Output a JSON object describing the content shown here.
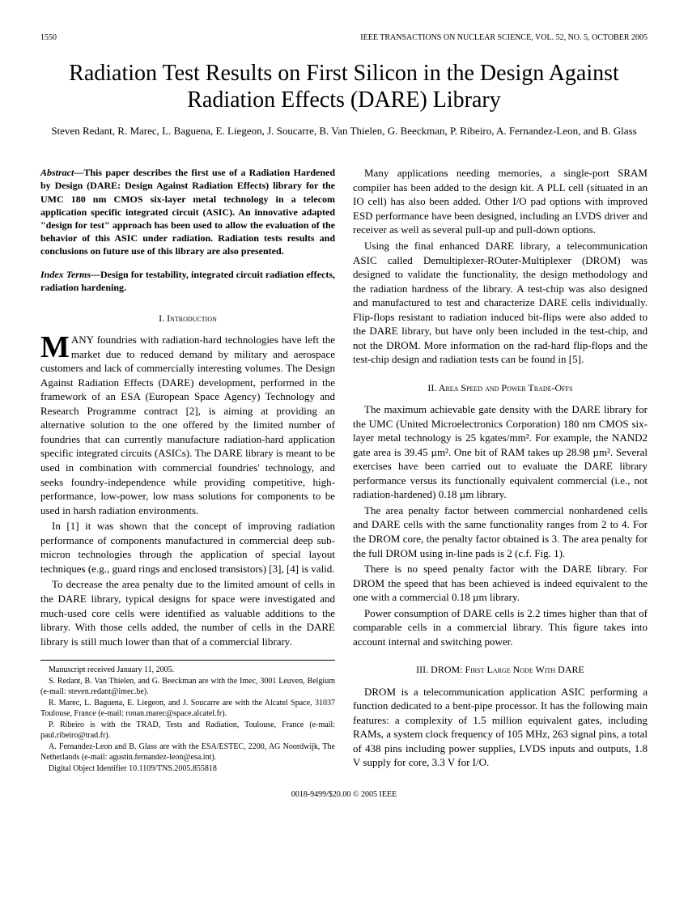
{
  "header": {
    "page": "1550",
    "journal": "IEEE TRANSACTIONS ON NUCLEAR SCIENCE, VOL. 52, NO. 5, OCTOBER 2005"
  },
  "title": "Radiation Test Results on First Silicon in the Design Against Radiation Effects (DARE) Library",
  "authors": "Steven Redant, R. Marec, L. Baguena, E. Liegeon, J. Soucarre, B. Van Thielen, G. Beeckman, P. Ribeiro, A. Fernandez-Leon, and B. Glass",
  "abstract_label": "Abstract—",
  "abstract": "This paper describes the first use of a Radiation Hardened by Design (DARE: Design Against Radiation Effects) library for the UMC 180 nm CMOS six-layer metal technology in a telecom application specific integrated circuit (ASIC). An innovative adapted \"design for test\" approach has been used to allow the evaluation of the behavior of this ASIC under radiation. Radiation tests results and conclusions on future use of this library are also presented.",
  "index_label": "Index Terms—",
  "index_terms": "Design for testability, integrated circuit radiation effects, radiation hardening.",
  "sec1_heading": "I. Introduction",
  "sec1_p1_rest": "ANY foundries with radiation-hard technologies have left the market due to reduced demand by military and aerospace customers and lack of commercially interesting volumes. The Design Against Radiation Effects (DARE) development, performed in the framework of an ESA (European Space Agency) Technology and Research Programme contract [2], is aiming at providing an alternative solution to the one offered by the limited number of foundries that can currently manufacture radiation-hard application specific integrated circuits (ASICs). The DARE library is meant to be used in combination with commercial foundries' technology, and seeks foundry-independence while providing competitive, high-performance, low-power, low mass solutions for components to be used in harsh radiation environments.",
  "sec1_p2": "In [1] it was shown that the concept of improving radiation performance of components manufactured in commercial deep sub-micron technologies through the application of special layout techniques (e.g., guard rings and enclosed transistors) [3], [4] is valid.",
  "sec1_p3": "To decrease the area penalty due to the limited amount of cells in the DARE library, typical designs for space were investigated and much-used core cells were identified as valuable additions to the library. With those cells added, the number of cells in the DARE library is still much lower than that of a commercial library.",
  "footnotes": {
    "f1": "Manuscript received January 11, 2005.",
    "f2": "S. Redant, B. Van Thielen, and G. Beeckman are with the Imec, 3001 Leuven, Belgium (e-mail: steven.redant@imec.be).",
    "f3": "R. Marec, L. Baguena, E. Liegeon, and J. Soucarre are with the Alcatel Space, 31037 Toulouse, France (e-mail: ronan.marec@space.alcatel.fr).",
    "f4": "P. Ribeiro is with the TRAD, Tests and Radiation, Toulouse, France (e-mail: paul.ribeiro@trad.fr).",
    "f5": "A. Fernandez-Leon and B. Glass are with the ESA/ESTEC, 2200, AG Noordwijk, The Netherlands (e-mail: agustin.fernandez-leon@esa.int).",
    "f6": "Digital Object Identifier 10.1109/TNS.2005.855818"
  },
  "col2_p1": "Many applications needing memories, a single-port SRAM compiler has been added to the design kit. A PLL cell (situated in an IO cell) has also been added. Other I/O pad options with improved ESD performance have been designed, including an LVDS driver and receiver as well as several pull-up and pull-down options.",
  "col2_p2": "Using the final enhanced DARE library, a telecommunication ASIC called Demultiplexer-ROuter-Multiplexer (DROM) was designed to validate the functionality, the design methodology and the radiation hardness of the library. A test-chip was also designed and manufactured to test and characterize DARE cells individually. Flip-flops resistant to radiation induced bit-flips were also added to the DARE library, but have only been included in the test-chip, and not the DROM. More information on the rad-hard flip-flops and the test-chip design and radiation tests can be found in [5].",
  "sec2_heading": "II. Area Speed and Power Trade-Offs",
  "sec2_p1": "The maximum achievable gate density with the DARE library for the UMC (United Microelectronics Corporation) 180 nm CMOS six-layer metal technology is 25 kgates/mm². For example, the NAND2 gate area is 39.45 µm². One bit of RAM takes up 28.98 µm². Several exercises have been carried out to evaluate the DARE library performance versus its functionally equivalent commercial (i.e., not radiation-hardened) 0.18 µm library.",
  "sec2_p2": "The area penalty factor between commercial nonhardened cells and DARE cells with the same functionality ranges from 2 to 4. For the DROM core, the penalty factor obtained is 3. The area penalty for the full DROM using in-line pads is 2 (c.f. Fig. 1).",
  "sec2_p3": "There is no speed penalty factor with the DARE library. For DROM the speed that has been achieved is indeed equivalent to the one with a commercial 0.18 µm library.",
  "sec2_p4": "Power consumption of DARE cells is 2.2 times higher than that of comparable cells in a commercial library. This figure takes into account internal and switching power.",
  "sec3_heading": "III. DROM: First Large Node With DARE",
  "sec3_p1": "DROM is a telecommunication application ASIC performing a function dedicated to a bent-pipe processor. It has the following main features: a complexity of 1.5 million equivalent gates, including RAMs, a system clock frequency of 105 MHz, 263 signal pins, a total of 438 pins including power supplies, LVDS inputs and outputs, 1.8 V supply for core, 3.3 V for I/O.",
  "footer": "0018-9499/$20.00 © 2005 IEEE"
}
